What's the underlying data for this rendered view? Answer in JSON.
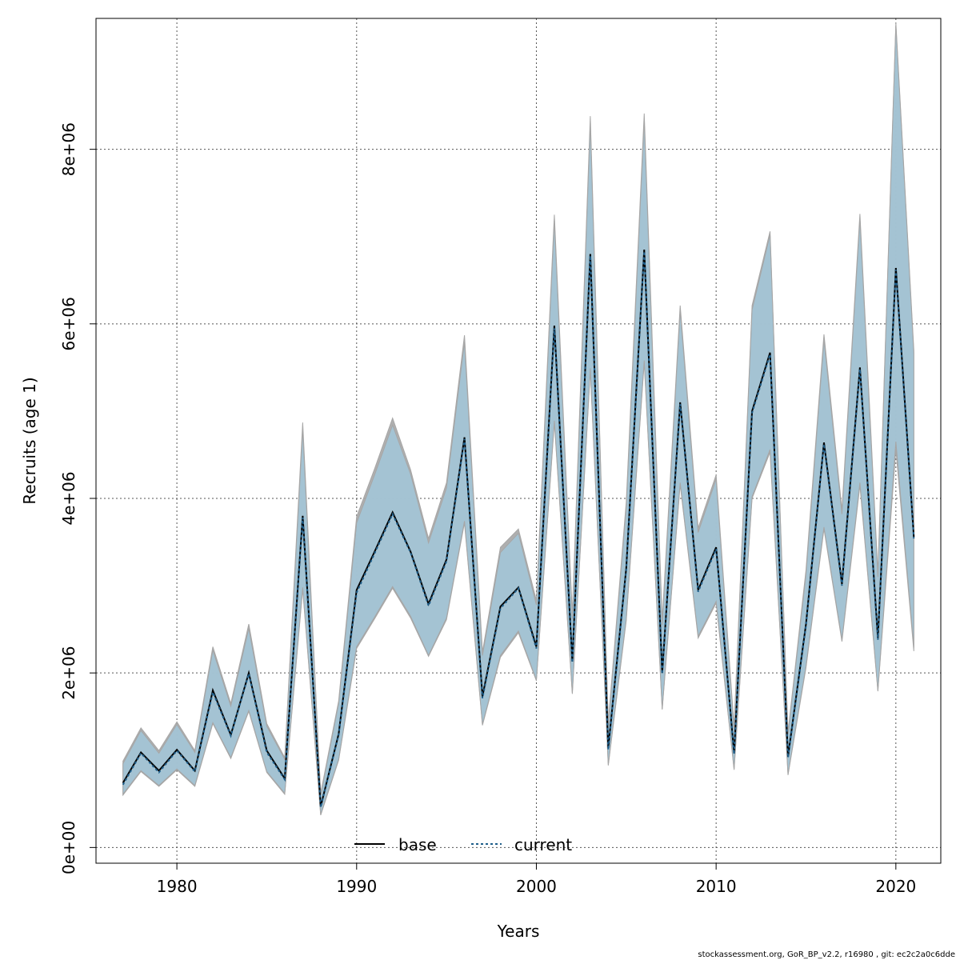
{
  "chart_data": {
    "type": "line",
    "title": "",
    "xlabel": "Years",
    "ylabel": "Recruits (age 1)",
    "xlim": [
      1975.5,
      2022.5
    ],
    "ylim": [
      -180000,
      9500000
    ],
    "x_ticks": [
      1980,
      1990,
      2000,
      2010,
      2020
    ],
    "x_tick_labels": [
      "1980",
      "1990",
      "2000",
      "2010",
      "2020"
    ],
    "y_ticks": [
      0,
      2000000,
      4000000,
      6000000,
      8000000
    ],
    "y_tick_labels": [
      "0e+00",
      "2e+06",
      "4e+06",
      "6e+06",
      "8e+06"
    ],
    "grid": true,
    "legend": {
      "placement": "bottom-center",
      "entries": [
        "base",
        "current"
      ]
    },
    "colors": {
      "band": "#a3c4d6",
      "band_edge": "#a6a6a6",
      "base_line": "#000000",
      "current_line": "#1f5f8b"
    },
    "x": [
      1977,
      1978,
      1979,
      1980,
      1981,
      1982,
      1983,
      1984,
      1985,
      1986,
      1987,
      1988,
      1989,
      1990,
      1991,
      1992,
      1993,
      1994,
      1995,
      1996,
      1997,
      1998,
      1999,
      2000,
      2001,
      2002,
      2003,
      2004,
      2005,
      2006,
      2007,
      2008,
      2009,
      2010,
      2011,
      2012,
      2013,
      2014,
      2015,
      2016,
      2017,
      2018,
      2019,
      2020,
      2021
    ],
    "series": [
      {
        "name": "base",
        "values": [
          740000,
          1090000,
          880000,
          1120000,
          880000,
          1800000,
          1290000,
          2000000,
          1110000,
          790000,
          3800000,
          470000,
          1300000,
          2950000,
          3390000,
          3840000,
          3390000,
          2790000,
          3300000,
          4700000,
          1730000,
          2760000,
          2980000,
          2300000,
          5980000,
          2130000,
          6800000,
          1140000,
          3200000,
          6850000,
          2000000,
          5100000,
          2950000,
          3440000,
          1080000,
          5000000,
          5670000,
          1040000,
          2560000,
          4640000,
          3020000,
          5500000,
          2400000,
          6640000,
          3560000
        ],
        "lower": [
          600000,
          870000,
          700000,
          890000,
          700000,
          1420000,
          1020000,
          1560000,
          860000,
          610000,
          2960000,
          370000,
          1000000,
          2280000,
          2620000,
          2970000,
          2630000,
          2190000,
          2610000,
          3720000,
          1400000,
          2180000,
          2460000,
          1910000,
          4870000,
          1760000,
          5470000,
          940000,
          2600000,
          5560000,
          1580000,
          4160000,
          2400000,
          2800000,
          890000,
          4000000,
          4530000,
          830000,
          2060000,
          3650000,
          2360000,
          4150000,
          1790000,
          4560000,
          2250000
        ],
        "upper": [
          990000,
          1370000,
          1110000,
          1440000,
          1110000,
          2300000,
          1650000,
          2560000,
          1420000,
          1030000,
          4870000,
          620000,
          1680000,
          3790000,
          4340000,
          4920000,
          4330000,
          3540000,
          4180000,
          5870000,
          2240000,
          3440000,
          3650000,
          2830000,
          7250000,
          2670000,
          8380000,
          1430000,
          3960000,
          8410000,
          2600000,
          6210000,
          3660000,
          4270000,
          1380000,
          6210000,
          7060000,
          1320000,
          3180000,
          5880000,
          3870000,
          7260000,
          3150000,
          9450000,
          5700000
        ]
      },
      {
        "name": "current",
        "values": [
          720000,
          1080000,
          860000,
          1110000,
          870000,
          1780000,
          1280000,
          1990000,
          1090000,
          780000,
          3780000,
          460000,
          1290000,
          2920000,
          3370000,
          3820000,
          3380000,
          2770000,
          3280000,
          4680000,
          1710000,
          2740000,
          2970000,
          2280000,
          5950000,
          2120000,
          6780000,
          1120000,
          3180000,
          6830000,
          1990000,
          5080000,
          2930000,
          3420000,
          1070000,
          4980000,
          5650000,
          1030000,
          2540000,
          4620000,
          3000000,
          5480000,
          2380000,
          6620000,
          3540000
        ],
        "lower": [
          610000,
          880000,
          710000,
          900000,
          710000,
          1430000,
          1030000,
          1570000,
          870000,
          620000,
          2980000,
          380000,
          1010000,
          2300000,
          2640000,
          2990000,
          2650000,
          2200000,
          2630000,
          3740000,
          1410000,
          2200000,
          2480000,
          1920000,
          4890000,
          1770000,
          5490000,
          950000,
          2620000,
          5580000,
          1590000,
          4180000,
          2420000,
          2820000,
          900000,
          4020000,
          4560000,
          840000,
          2080000,
          3670000,
          2380000,
          4180000,
          1800000,
          4650000,
          2290000
        ],
        "upper": [
          960000,
          1340000,
          1080000,
          1410000,
          1090000,
          2260000,
          1620000,
          2510000,
          1390000,
          1010000,
          4790000,
          600000,
          1650000,
          3720000,
          4270000,
          4840000,
          4280000,
          3490000,
          4120000,
          5790000,
          2200000,
          3380000,
          3600000,
          2780000,
          7180000,
          2620000,
          8300000,
          1400000,
          3900000,
          8330000,
          2550000,
          6150000,
          3610000,
          4220000,
          1350000,
          6160000,
          7020000,
          1300000,
          3130000,
          5820000,
          3820000,
          7200000,
          3100000,
          9420000,
          5660000
        ]
      }
    ]
  },
  "footer": "stockassessment.org, GoR_BP_v2.2, r16980 , git: ec2c2a0c6dde"
}
